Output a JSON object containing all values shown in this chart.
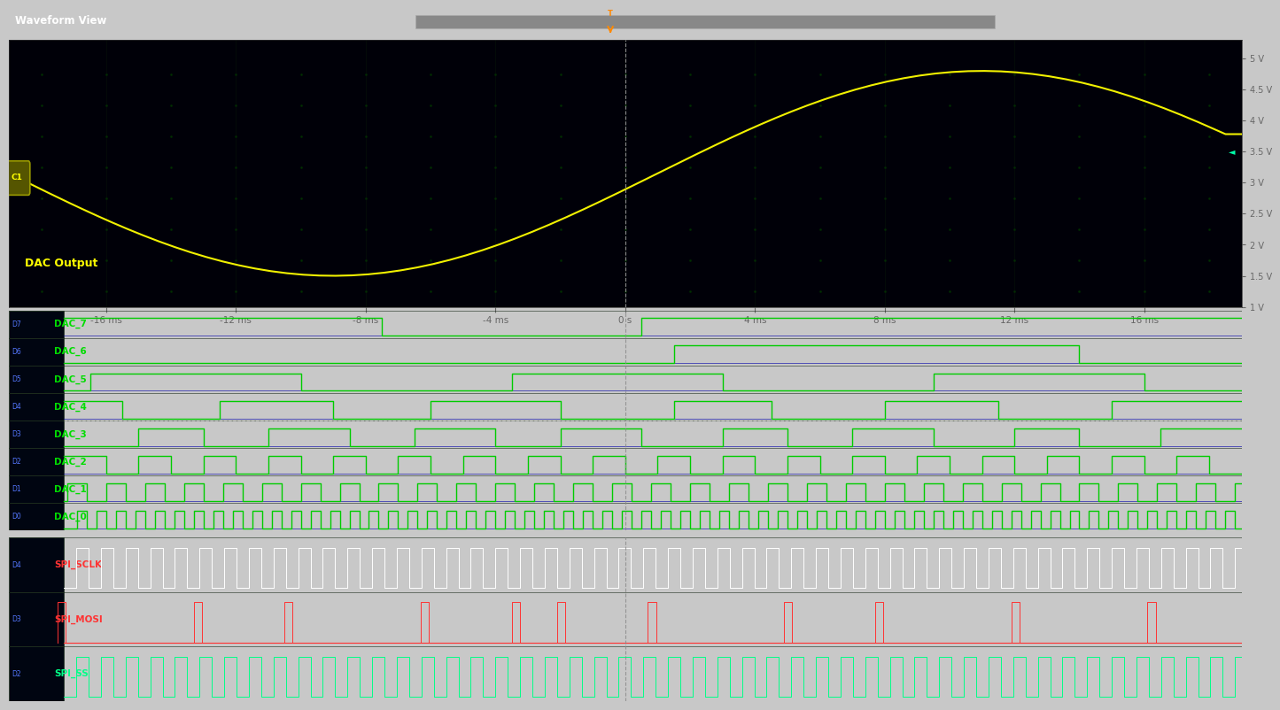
{
  "title": "Waveform View",
  "outer_bg": "#c8c8c8",
  "inner_bg": "#000010",
  "title_bg": "#3a3a3a",
  "title_color": "#ffffff",
  "analog_xlim": [
    -19,
    19
  ],
  "analog_ylim": [
    1.0,
    5.3
  ],
  "analog_yticks": [
    1.0,
    1.5,
    2.0,
    2.5,
    3.0,
    3.5,
    4.0,
    4.5,
    5.0
  ],
  "analog_ytick_labels": [
    "1 V",
    "1.5 V",
    "2 V",
    "2.5 V",
    "3 V",
    "3.5 V",
    "4 V",
    "4.5 V",
    "5 V"
  ],
  "time_ticks": [
    -16,
    -12,
    -8,
    -4,
    0,
    4,
    8,
    12,
    16
  ],
  "time_tick_labels": [
    "-16 ms",
    "-12 ms",
    "-8 ms",
    "-4 ms",
    "0 s",
    "4 ms",
    "8 ms",
    "12 ms",
    "16 ms"
  ],
  "dac_label": "DAC Output",
  "dac_color": "#ffff00",
  "digital_channels": [
    "DAC_7",
    "DAC_6",
    "DAC_5",
    "DAC_4",
    "DAC_3",
    "DAC_2",
    "DAC_1",
    "DAC_0"
  ],
  "spi_channels": [
    "SPI_SCLK",
    "SPI_MOSI",
    "SPI_SS"
  ],
  "spi_label_colors": [
    "#ff3333",
    "#ff3333",
    "#00ff88"
  ],
  "cursor_color": "#cccccc",
  "grid_dot_color": "#001800"
}
